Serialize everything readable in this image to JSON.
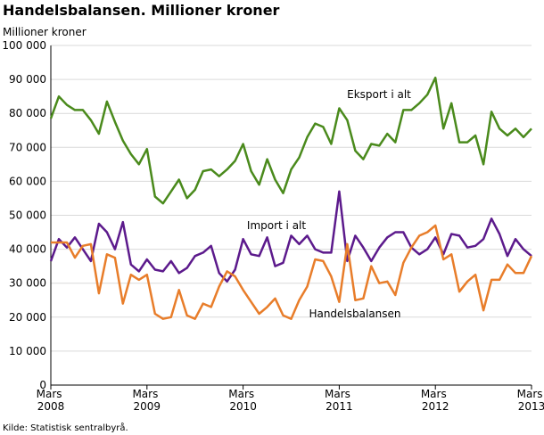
{
  "chart_data": {
    "type": "line",
    "title": "Handelsbalansen. Millioner kroner",
    "y_label": "Millioner kroner",
    "source": "Kilde: Statistisk sentralbyrå.",
    "categories": [
      "Mars 2008",
      null,
      null,
      null,
      null,
      null,
      null,
      null,
      null,
      null,
      null,
      null,
      "Mars 2009",
      null,
      null,
      null,
      null,
      null,
      null,
      null,
      null,
      null,
      null,
      null,
      "Mars 2010",
      null,
      null,
      null,
      null,
      null,
      null,
      null,
      null,
      null,
      null,
      null,
      "Mars 2011",
      null,
      null,
      null,
      null,
      null,
      null,
      null,
      null,
      null,
      null,
      null,
      "Mars 2012",
      null,
      null,
      null,
      null,
      null,
      null,
      null,
      null,
      null,
      null,
      null,
      "Mars 2013"
    ],
    "series": [
      {
        "name": "Eksport i alt",
        "color": "#4a8a1c",
        "values": [
          78500,
          85000,
          82500,
          81000,
          81000,
          78000,
          74000,
          83500,
          77500,
          72000,
          68000,
          65000,
          69500,
          55500,
          53500,
          57000,
          60500,
          55000,
          57500,
          63000,
          63500,
          61500,
          63500,
          66000,
          71000,
          63000,
          59000,
          66500,
          60500,
          56500,
          63500,
          67000,
          73000,
          77000,
          76000,
          71000,
          81500,
          78000,
          69000,
          66500,
          71000,
          70500,
          74000,
          71500,
          81000,
          81000,
          83000,
          85500,
          90500,
          75500,
          83000,
          71500,
          71500,
          73500,
          65000,
          80500,
          75500,
          73500,
          75500,
          73000,
          75500
        ]
      },
      {
        "name": "Import i alt",
        "color": "#5c1a8c",
        "values": [
          36500,
          43000,
          40500,
          43500,
          40000,
          36500,
          47500,
          45000,
          40000,
          48000,
          35500,
          33500,
          37000,
          34000,
          33500,
          36500,
          33000,
          34500,
          38000,
          39000,
          41000,
          33000,
          30500,
          34000,
          43000,
          38500,
          38000,
          43500,
          35000,
          36000,
          44000,
          41500,
          44000,
          40000,
          39000,
          39000,
          57000,
          36500,
          44000,
          40500,
          36500,
          40500,
          43500,
          45000,
          45000,
          40500,
          38500,
          40000,
          43500,
          38500,
          44500,
          44000,
          40500,
          41000,
          43000,
          49000,
          44500,
          38000,
          43000,
          40000,
          38000
        ]
      },
      {
        "name": "Handelsbalansen",
        "color": "#e87d2a",
        "values": [
          42000,
          42000,
          42000,
          37500,
          41000,
          41500,
          27000,
          38500,
          37500,
          24000,
          32500,
          31000,
          32500,
          21000,
          19500,
          20000,
          28000,
          20500,
          19500,
          24000,
          23000,
          29000,
          33500,
          32000,
          28000,
          24500,
          21000,
          23000,
          25500,
          20500,
          19500,
          25000,
          29000,
          37000,
          36500,
          32000,
          24500,
          41500,
          25000,
          25500,
          35000,
          30000,
          30500,
          26500,
          36000,
          40500,
          44000,
          45000,
          47000,
          37000,
          38500,
          27500,
          30500,
          32500,
          22000,
          31000,
          31000,
          35500,
          33000,
          33000,
          38000
        ]
      }
    ],
    "ylim": [
      0,
      100000
    ],
    "yticks": [
      0,
      {
        "value": 10000,
        "label": "10 000"
      },
      {
        "value": 20000,
        "label": "20 000"
      },
      {
        "value": 30000,
        "label": "30 000"
      },
      {
        "value": 40000,
        "label": "40 000"
      },
      {
        "value": 50000,
        "label": "50 000"
      },
      {
        "value": 60000,
        "label": "60 000"
      },
      {
        "value": 70000,
        "label": "70 000"
      },
      {
        "value": 80000,
        "label": "80 000"
      },
      {
        "value": 90000,
        "label": "90 000"
      },
      {
        "value": 100000,
        "label": "100 000"
      }
    ],
    "grid": true
  }
}
